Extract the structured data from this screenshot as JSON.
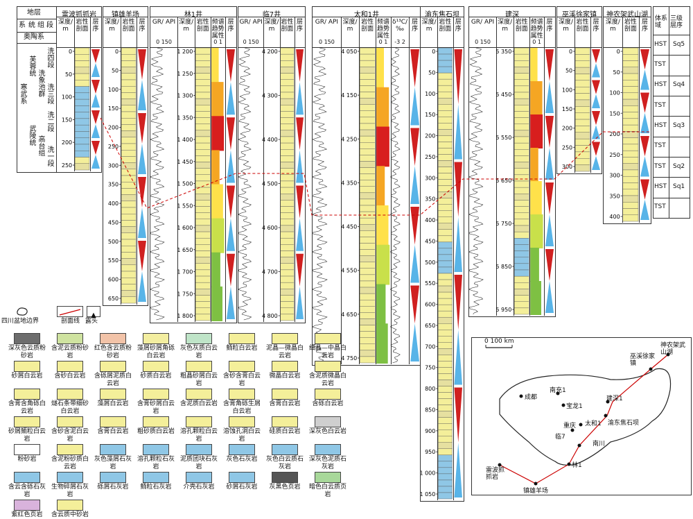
{
  "sections": [
    {
      "title": "地层",
      "name": "strata"
    },
    {
      "title": "雷波抓抓岩",
      "name": "leibo"
    },
    {
      "title": "镇雄羊场",
      "name": "zhenxiong"
    },
    {
      "title": "林1井",
      "name": "lin1"
    },
    {
      "title": "临7井",
      "name": "lin7"
    },
    {
      "title": "太和1井",
      "name": "taihe1"
    },
    {
      "title": "渝东焦石坝",
      "name": "jiaoshiba"
    },
    {
      "title": "建深",
      "name": "jianshen"
    },
    {
      "title": "巫溪徐家镇",
      "name": "wuxi"
    },
    {
      "title": "神农架武山湖",
      "name": "shennongjia"
    }
  ],
  "strata_table": {
    "h_system": "系",
    "h_series": "统",
    "h_group": "组",
    "h_member": "段",
    "above": "奥陶系",
    "system": "寒武系",
    "series_upper": "芙蓉统",
    "series_lower": "武陵统",
    "group_upper": "洗象池群",
    "group_lower": "高台组",
    "members": [
      "洗四段",
      "洗三段",
      "洗二段",
      "洗一段"
    ]
  },
  "col_headers": {
    "depth": "深度/m",
    "lith": "岩性剖面",
    "seq": "层序",
    "gr": "GR/ API",
    "gr_scale": "0 150",
    "spec": "频谱趋势属性",
    "spec_scale": "0 1",
    "d13c": "δ¹³C/ ‰",
    "d13c_scale": "-3 2",
    "system_tract": "体系域",
    "seq3": "三级层序"
  },
  "depth_ticks": {
    "leibo": [
      "0",
      "50",
      "100",
      "150",
      "200",
      "250"
    ],
    "zhenxiong": [
      "0",
      "50",
      "100",
      "150",
      "200",
      "250",
      "300",
      "350",
      "400",
      "450",
      "500",
      "550",
      "600",
      "650"
    ],
    "lin1": [
      "1 200",
      "1 250",
      "1 300",
      "1 350",
      "1 400",
      "1 450",
      "1 500",
      "1 550",
      "1 600",
      "1 650",
      "1 700",
      "1 750",
      "1 800"
    ],
    "lin7": [
      "4 200",
      "4 300",
      "4 400",
      "4 500",
      "4 600",
      "4 700",
      "4 800"
    ],
    "taihe1": [
      "4 050",
      "4 150",
      "4 250",
      "4 350",
      "4 450",
      "4 550",
      "4 650",
      "4 750"
    ],
    "jiaoshiba": [
      "0",
      "50",
      "100",
      "150",
      "200",
      "250",
      "300",
      "350",
      "400",
      "450",
      "500",
      "550",
      "600",
      "650",
      "700",
      "750",
      "800",
      "850",
      "900",
      "950",
      "1 000",
      "1 050"
    ],
    "jianshen": [
      "5 350",
      "5 450",
      "5 550",
      "5 650",
      "5 750",
      "5 850",
      "5 950"
    ],
    "wuxi": [
      "0",
      "50",
      "100",
      "150",
      "200",
      "250",
      "300"
    ],
    "shennongjia": [
      "0",
      "50",
      "100",
      "150",
      "200",
      "250",
      "300",
      "350",
      "400"
    ]
  },
  "sequences": [
    {
      "tract": "HST",
      "name": "Sq5"
    },
    {
      "tract": "TST",
      "name": ""
    },
    {
      "tract": "HST",
      "name": "Sq4"
    },
    {
      "tract": "TST",
      "name": ""
    },
    {
      "tract": "HST",
      "name": "Sq3"
    },
    {
      "tract": "TST",
      "name": ""
    },
    {
      "tract": "TST",
      "name": "Sq2"
    },
    {
      "tract": "HST",
      "name": "Sq1"
    },
    {
      "tract": "TST",
      "name": ""
    }
  ],
  "legend_top": [
    "四川盆地边界",
    "剖面线",
    "露头"
  ],
  "legend": [
    {
      "label": "深灰色云质粉砂岩",
      "color": "#6d6d6d"
    },
    {
      "label": "含泥云质粉砂岩",
      "color": "#cfe3a0"
    },
    {
      "label": "红色含云质粉砂岩",
      "color": "#f2c3a8"
    },
    {
      "label": "藻屑砂屑角砾白云岩",
      "color": "#f3eea0"
    },
    {
      "label": "灰色灰质白云岩",
      "color": "#bfe4c8"
    },
    {
      "label": "鲕粒白云岩",
      "color": "#f4ef9a"
    },
    {
      "label": "泥晶—微晶白云岩",
      "color": "#f4ef9a"
    },
    {
      "label": "细晶—中晶白云岩",
      "color": "#f4ef9a"
    },
    {
      "label": "砂屑白云岩",
      "color": "#f4ef9a"
    },
    {
      "label": "含砂白云岩",
      "color": "#f4ef9a"
    },
    {
      "label": "含砾屑泥质白云岩",
      "color": "#f4ef9a"
    },
    {
      "label": "砂质白云岩",
      "color": "#f4ef9a"
    },
    {
      "label": "粗晶砂屑白云岩",
      "color": "#f4ef9a"
    },
    {
      "label": "含砂含膏白云岩",
      "color": "#f4ef9a"
    },
    {
      "label": "微晶白云岩",
      "color": "#f4ef9a"
    },
    {
      "label": "含泥质微晶白云岩",
      "color": "#f4ef9a"
    },
    {
      "label": "含膏含角砾白云岩",
      "color": "#f4ef9a"
    },
    {
      "label": "燧石条带细砂白云岩",
      "color": "#f4ef9a"
    },
    {
      "label": "藻屑白云岩",
      "color": "#f4ef9a"
    },
    {
      "label": "含膏砂屑白云岩",
      "color": "#f4ef9a"
    },
    {
      "label": "含泥质白云岩",
      "color": "#f4ef9a"
    },
    {
      "label": "含膏角砾生屑白云岩",
      "color": "#f4ef9a"
    },
    {
      "label": "含膏白云岩",
      "color": "#f4ef9a"
    },
    {
      "label": "含砾白云岩",
      "color": "#f4ef9a"
    },
    {
      "label": "砂屑鲕粒白云岩",
      "color": "#f4ef9a"
    },
    {
      "label": "含砂含泥白云岩",
      "color": "#f4ef9a"
    },
    {
      "label": "含膏白云岩",
      "color": "#f4ef9a"
    },
    {
      "label": "粗砂质白云岩",
      "color": "#f4ef9a"
    },
    {
      "label": "溶孔颗粒白云岩",
      "color": "#f4ef9a"
    },
    {
      "label": "溶蚀孔洞白云岩",
      "color": "#f4ef9a"
    },
    {
      "label": "硅质白云岩",
      "color": "#f4ef9a"
    },
    {
      "label": "深灰色白云岩",
      "color": "#cfcfcf"
    },
    {
      "label": "粉砂岩",
      "color": "#ffffff"
    },
    {
      "label": "含泥粉砂质白云岩",
      "color": "#f4ef9a"
    },
    {
      "label": "灰色藻屑石灰岩",
      "color": "#8fc7e6"
    },
    {
      "label": "溶孔颗粒石灰岩",
      "color": "#8fc7e6"
    },
    {
      "label": "泥质团块石灰岩",
      "color": "#8fc7e6"
    },
    {
      "label": "灰色石灰岩",
      "color": "#8fc7e6"
    },
    {
      "label": "灰色白云质石灰岩",
      "color": "#8fc7e6"
    },
    {
      "label": "深灰色泥质石灰岩",
      "color": "#8fc7e6"
    },
    {
      "label": "含云含砾石灰岩",
      "color": "#8fc7e6"
    },
    {
      "label": "生物碎屑石灰岩",
      "color": "#8fc7e6"
    },
    {
      "label": "砾屑石灰岩",
      "color": "#8fc7e6"
    },
    {
      "label": "鲕粒石灰岩",
      "color": "#8fc7e6"
    },
    {
      "label": "介壳石灰岩",
      "color": "#8fc7e6"
    },
    {
      "label": "砂屑石灰岩",
      "color": "#8fc7e6"
    },
    {
      "label": "灰黑色页岩",
      "color": "#555555"
    },
    {
      "label": "暗色白云质页岩",
      "color": "#a8d89a"
    },
    {
      "label": "紫红色页岩",
      "color": "#d9b3dc"
    },
    {
      "label": "含云质中砂岩",
      "color": "#f4ef9a"
    }
  ],
  "map": {
    "scale": "0     100 km",
    "places": [
      "神农架武山湖",
      "巫溪徐家镇",
      "南充1",
      "成都",
      "宝龙1",
      "建深1",
      "太和1",
      "重庆",
      "渝东焦石坝",
      "临7",
      "南川",
      "林1",
      "雷波抓抓岩",
      "镇雄羊场"
    ]
  },
  "colors": {
    "border": "#333333",
    "section_line": "#cc0000",
    "dolomite": "#f4ef9a",
    "limestone": "#8fc7e6",
    "spec_hot": "#d81e1e",
    "spec_mid": "#f5a623",
    "spec_cool": "#7ec043",
    "tri_red": "#d02020",
    "tri_blue": "#58b4e8"
  }
}
